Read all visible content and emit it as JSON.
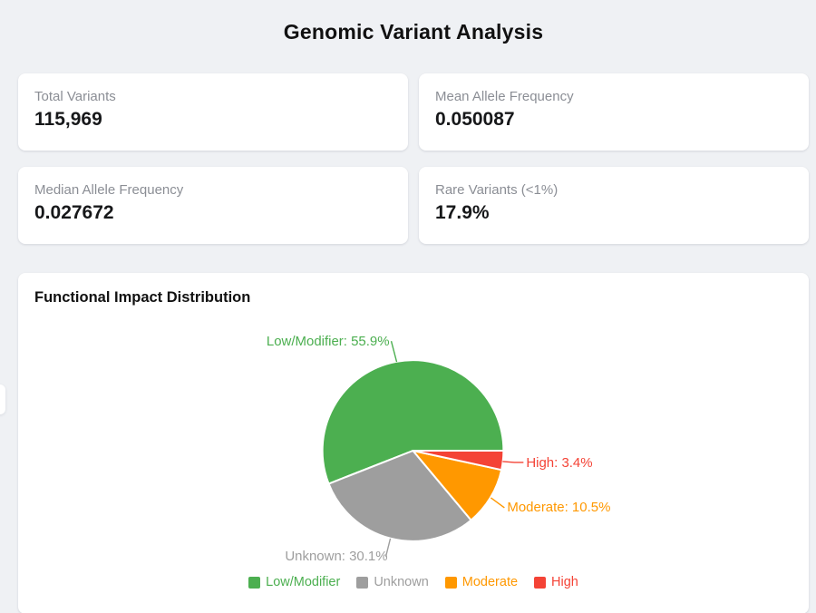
{
  "page": {
    "title": "Genomic Variant Analysis"
  },
  "stats": {
    "cards": [
      {
        "label": "Total Variants",
        "value": "115,969"
      },
      {
        "label": "Mean Allele Frequency",
        "value": "0.050087"
      },
      {
        "label": "Median Allele Frequency",
        "value": "0.027672"
      },
      {
        "label": "Rare Variants (<1%)",
        "value": "17.9%"
      }
    ]
  },
  "chart_card": {
    "title": "Functional Impact Distribution"
  },
  "chart_data": {
    "type": "pie",
    "title": "Functional Impact Distribution",
    "labels": [
      "Low/Modifier",
      "Unknown",
      "Moderate",
      "High"
    ],
    "values": [
      55.9,
      30.1,
      10.5,
      3.4
    ],
    "unit": "%",
    "colors": [
      "#4caf50",
      "#9e9e9e",
      "#ff9800",
      "#f44336"
    ],
    "label_format": "{name}: {value}%",
    "start_angle_deg": 0,
    "direction": "counterclockwise",
    "legend_position": "bottom",
    "legend_entries": [
      "Low/Modifier",
      "Unknown",
      "Moderate",
      "High"
    ]
  },
  "colors": {
    "background": "#eff1f4",
    "card": "#ffffff",
    "text_primary": "#17181a",
    "text_muted": "#8b8e95"
  }
}
